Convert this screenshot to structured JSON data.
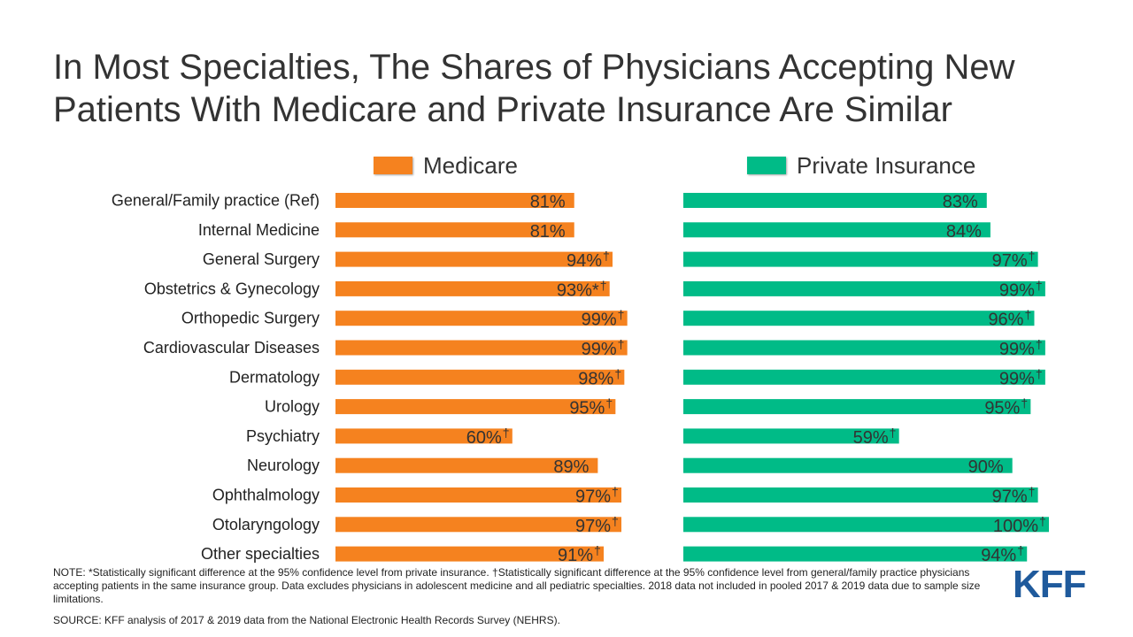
{
  "title": "In Most Specialties, The Shares of Physicians Accepting New Patients With Medicare and Private Insurance Are Similar",
  "colors": {
    "medicare": "#f5821f",
    "private": "#00bb87",
    "logo": "#1f5a9c"
  },
  "legend": {
    "medicare": "Medicare",
    "private": "Private Insurance"
  },
  "chart_data": {
    "type": "bar",
    "orientation": "horizontal",
    "panels": "side-by-side",
    "categories": [
      "General/Family practice (Ref)",
      "Internal Medicine",
      "General Surgery",
      "Obstetrics & Gynecology",
      "Orthopedic Surgery",
      "Cardiovascular Diseases",
      "Dermatology",
      "Urology",
      "Psychiatry",
      "Neurology",
      "Ophthalmology",
      "Otolaryngology",
      "Other specialties"
    ],
    "xlim": [
      0,
      100
    ],
    "series": [
      {
        "name": "Medicare",
        "values": [
          81,
          81,
          94,
          93,
          99,
          99,
          98,
          95,
          60,
          89,
          97,
          97,
          91
        ],
        "labels": [
          "81%",
          "81%",
          "94%",
          "93%*",
          "99%",
          "99%",
          "98%",
          "95%",
          "60%",
          "89%",
          "97%",
          "97%",
          "91%"
        ],
        "dagger": [
          false,
          false,
          true,
          true,
          true,
          true,
          true,
          true,
          true,
          false,
          true,
          true,
          true
        ]
      },
      {
        "name": "Private Insurance",
        "values": [
          83,
          84,
          97,
          99,
          96,
          99,
          99,
          95,
          59,
          90,
          97,
          100,
          94
        ],
        "labels": [
          "83%",
          "84%",
          "97%",
          "99%",
          "96%",
          "99%",
          "99%",
          "95%",
          "59%",
          "90%",
          "97%",
          "100%",
          "94%"
        ],
        "dagger": [
          false,
          false,
          true,
          true,
          true,
          true,
          true,
          true,
          true,
          false,
          true,
          true,
          true
        ]
      }
    ]
  },
  "note": "NOTE: *Statistically significant difference at the 95% confidence level from private insurance. †Statistically significant difference at the 95% confidence level from general/family practice physicians accepting patients in the same insurance group.  Data excludes physicians in adolescent medicine and all pediatric specialties. 2018 data not included in pooled 2017 & 2019 data due to sample size limitations.",
  "source": "SOURCE:  KFF analysis of 2017 & 2019 data from the National Electronic Health Records Survey (NEHRS).",
  "logo_text": "KFF"
}
